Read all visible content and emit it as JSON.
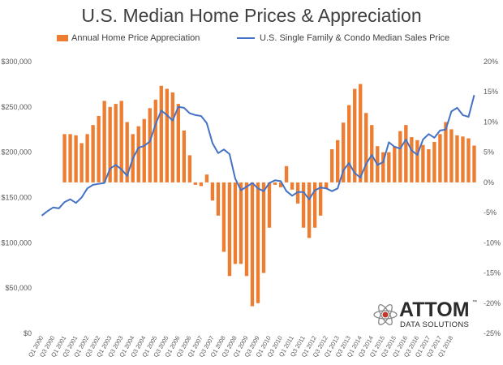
{
  "chart_data": {
    "type": "bar+line",
    "title": "U.S. Median Home Prices & Appreciation",
    "legend_position": "top",
    "series": [
      {
        "name": "Annual Home Price Appreciation",
        "type": "bar",
        "axis": "right",
        "color": "#ED7D31",
        "values": [
          null,
          null,
          null,
          null,
          8,
          8,
          7.8,
          6.5,
          8,
          9.5,
          11,
          13.5,
          12.5,
          13,
          13.5,
          10,
          8,
          9.3,
          10.5,
          12.3,
          13.7,
          16,
          15.5,
          14.9,
          13,
          8.6,
          4.5,
          -0.4,
          -0.6,
          1.3,
          -3,
          -5.5,
          -11.5,
          -15.5,
          -13.5,
          -13.5,
          -15.5,
          -20.5,
          -20,
          -15,
          -7.5,
          -0.4,
          -0.8,
          2.7,
          -1.2,
          -3.5,
          -7.5,
          -9.2,
          -7.5,
          -5.5,
          -1,
          5.5,
          7,
          9.9,
          12.8,
          15.5,
          16.3,
          11.5,
          9.5,
          6,
          5,
          5,
          6,
          8.5,
          9.5,
          7.5,
          7,
          6.2,
          5.5,
          6.7,
          8,
          10,
          8.8,
          7.8,
          7.6,
          7.3,
          6.1
        ]
      },
      {
        "name": "U.S. Single Family & Condo Median Sales Price",
        "type": "line",
        "axis": "left",
        "color": "#4472C4",
        "values": [
          130000,
          135000,
          139000,
          138000,
          145000,
          148000,
          144000,
          150000,
          160000,
          164000,
          165000,
          166000,
          182000,
          186000,
          181000,
          174000,
          193000,
          205000,
          207000,
          212000,
          231000,
          246000,
          241000,
          235000,
          250000,
          249000,
          243000,
          241000,
          240000,
          232000,
          210000,
          199000,
          203000,
          198000,
          171000,
          158000,
          162000,
          166000,
          160000,
          157000,
          166000,
          169000,
          168000,
          157000,
          152000,
          156000,
          156000,
          148000,
          158000,
          161000,
          160000,
          157000,
          160000,
          180000,
          188000,
          177000,
          172000,
          187000,
          197000,
          186000,
          189000,
          211000,
          206000,
          204000,
          214000,
          202000,
          197000,
          214000,
          220000,
          216000,
          224000,
          225000,
          245000,
          249000,
          241000,
          239000,
          263000
        ]
      }
    ],
    "x": [
      "Q1 2000",
      "Q2 2000",
      "Q3 2000",
      "Q4 2000",
      "Q1 2001",
      "Q2 2001",
      "Q3 2001",
      "Q4 2001",
      "Q1 2002",
      "Q2 2002",
      "Q3 2002",
      "Q4 2002",
      "Q1 2003",
      "Q2 2003",
      "Q3 2003",
      "Q4 2003",
      "Q1 2004",
      "Q2 2004",
      "Q3 2004",
      "Q4 2004",
      "Q1 2005",
      "Q2 2005",
      "Q3 2005",
      "Q4 2005",
      "Q1 2006",
      "Q2 2006",
      "Q3 2006",
      "Q4 2006",
      "Q1 2007",
      "Q2 2007",
      "Q3 2007",
      "Q4 2007",
      "Q1 2008",
      "Q2 2008",
      "Q3 2008",
      "Q4 2008",
      "Q1 2009",
      "Q2 2009",
      "Q3 2009",
      "Q4 2009",
      "Q1 2010",
      "Q2 2010",
      "Q3 2010",
      "Q4 2010",
      "Q1 2011",
      "Q2 2011",
      "Q3 2011",
      "Q4 2011",
      "Q1 2012",
      "Q2 2012",
      "Q3 2012",
      "Q4 2012",
      "Q1 2013",
      "Q2 2013",
      "Q3 2013",
      "Q4 2013",
      "Q1 2014",
      "Q2 2014",
      "Q3 2014",
      "Q4 2014",
      "Q1 2015",
      "Q2 2015",
      "Q3 2015",
      "Q4 2015",
      "Q1 2016",
      "Q2 2016",
      "Q3 2016",
      "Q4 2016",
      "Q1 2017",
      "Q2 2017",
      "Q3 2017",
      "Q4 2017",
      "Q1 2018",
      "Q2 2018",
      "Q3 2018",
      "Q4 2018",
      "Q1 2019"
    ],
    "x_tick_labels": [
      "Q1 2000",
      "Q3 2000",
      "Q1 2001",
      "Q3 2001",
      "Q1 2002",
      "Q3 2002",
      "Q1 2003",
      "Q3 2003",
      "Q1 2004",
      "Q3 2004",
      "Q1 2005",
      "Q3 2005",
      "Q1 2006",
      "Q3 2006",
      "Q1 2007",
      "Q3 2007",
      "Q1 2008",
      "Q3 2008",
      "Q1 2009",
      "Q3 2009",
      "Q1 2010",
      "Q3 2010",
      "Q1 2011",
      "Q3 2011",
      "Q1 2012",
      "Q3 2012",
      "Q1 2013",
      "Q3 2013",
      "Q1 2014",
      "Q3 2014",
      "Q1 2015",
      "Q3 2015",
      "Q1 2016",
      "Q3 2016",
      "Q1 2017",
      "Q3 2017",
      "Q1 2018"
    ],
    "y_left": {
      "ylim": [
        0,
        300000
      ],
      "ticks": [
        "$0",
        "$50,000",
        "$100,000",
        "$150,000",
        "$200,000",
        "$250,000",
        "$300,000"
      ]
    },
    "y_right": {
      "ylim": [
        -25,
        20
      ],
      "ticks": [
        "-25%",
        "-20%",
        "-15%",
        "-10%",
        "-5%",
        "0%",
        "5%",
        "10%",
        "15%",
        "20%"
      ]
    },
    "grid": false
  },
  "logo": {
    "text": "ATTOM",
    "subtitle": "DATA SOLUTIONS",
    "trademark": "™"
  }
}
